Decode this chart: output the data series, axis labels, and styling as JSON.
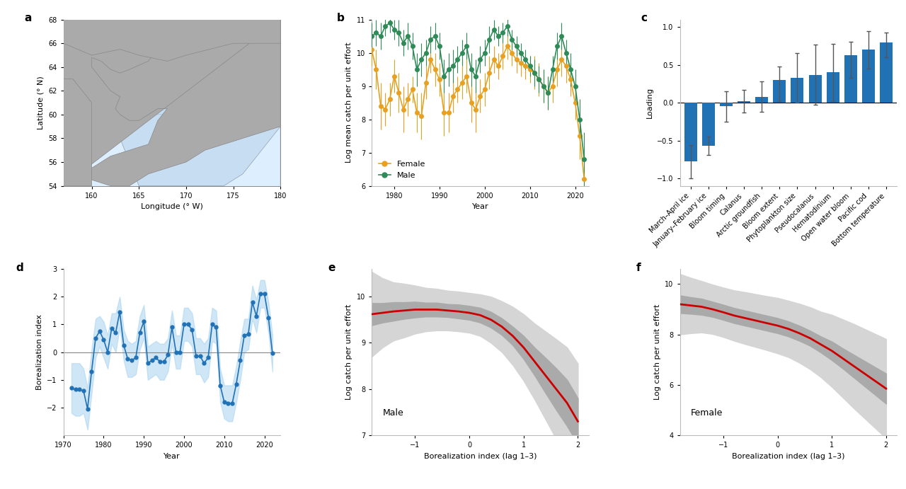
{
  "panel_b": {
    "years_female": [
      1975,
      1976,
      1977,
      1978,
      1979,
      1980,
      1981,
      1982,
      1983,
      1984,
      1985,
      1986,
      1987,
      1988,
      1989,
      1990,
      1991,
      1992,
      1993,
      1994,
      1995,
      1996,
      1997,
      1998,
      1999,
      2000,
      2001,
      2002,
      2003,
      2004,
      2005,
      2006,
      2007,
      2008,
      2009,
      2010,
      2011,
      2012,
      2013,
      2014,
      2015,
      2016,
      2017,
      2018,
      2019,
      2020,
      2021,
      2022
    ],
    "female": [
      10.1,
      9.5,
      8.4,
      8.3,
      8.6,
      9.3,
      8.8,
      8.3,
      8.6,
      8.9,
      8.2,
      8.1,
      9.1,
      9.8,
      9.5,
      9.2,
      8.2,
      8.2,
      8.7,
      8.9,
      9.1,
      9.3,
      8.5,
      8.3,
      8.7,
      8.9,
      9.4,
      9.8,
      9.6,
      9.9,
      10.2,
      10.0,
      9.8,
      9.7,
      9.6,
      9.5,
      9.4,
      9.2,
      9.0,
      8.8,
      9.0,
      9.5,
      9.8,
      9.6,
      9.2,
      8.5,
      7.5,
      6.2
    ],
    "female_err": [
      0.5,
      0.6,
      0.7,
      0.5,
      0.5,
      0.5,
      0.6,
      0.7,
      0.5,
      0.4,
      0.6,
      0.7,
      0.5,
      0.4,
      0.5,
      0.5,
      0.7,
      0.6,
      0.5,
      0.4,
      0.5,
      0.5,
      0.6,
      0.7,
      0.5,
      0.5,
      0.5,
      0.4,
      0.4,
      0.4,
      0.4,
      0.4,
      0.4,
      0.4,
      0.4,
      0.4,
      0.5,
      0.5,
      0.5,
      0.5,
      0.5,
      0.5,
      0.5,
      0.5,
      0.5,
      0.5,
      0.7,
      0.8
    ],
    "years_male": [
      1975,
      1976,
      1977,
      1978,
      1979,
      1980,
      1981,
      1982,
      1983,
      1984,
      1985,
      1986,
      1987,
      1988,
      1989,
      1990,
      1991,
      1992,
      1993,
      1994,
      1995,
      1996,
      1997,
      1998,
      1999,
      2000,
      2001,
      2002,
      2003,
      2004,
      2005,
      2006,
      2007,
      2008,
      2009,
      2010,
      2011,
      2012,
      2013,
      2014,
      2015,
      2016,
      2017,
      2018,
      2019,
      2020,
      2021,
      2022
    ],
    "male": [
      10.5,
      10.6,
      10.5,
      10.8,
      10.9,
      10.7,
      10.6,
      10.3,
      10.5,
      10.2,
      9.5,
      9.8,
      10.0,
      10.4,
      10.5,
      10.2,
      9.3,
      9.5,
      9.6,
      9.8,
      10.0,
      10.2,
      9.5,
      9.3,
      9.8,
      10.0,
      10.4,
      10.7,
      10.5,
      10.6,
      10.8,
      10.4,
      10.2,
      10.0,
      9.8,
      9.6,
      9.4,
      9.2,
      9.0,
      8.8,
      9.5,
      10.2,
      10.5,
      10.0,
      9.5,
      9.0,
      8.0,
      6.8
    ],
    "male_err": [
      0.4,
      0.4,
      0.4,
      0.3,
      0.3,
      0.3,
      0.4,
      0.4,
      0.4,
      0.4,
      0.5,
      0.5,
      0.4,
      0.4,
      0.4,
      0.4,
      0.5,
      0.5,
      0.5,
      0.4,
      0.4,
      0.4,
      0.5,
      0.5,
      0.4,
      0.4,
      0.4,
      0.3,
      0.3,
      0.3,
      0.3,
      0.3,
      0.3,
      0.3,
      0.3,
      0.3,
      0.4,
      0.4,
      0.5,
      0.5,
      0.4,
      0.4,
      0.4,
      0.4,
      0.5,
      0.5,
      0.6,
      0.8
    ],
    "female_color": "#E8A020",
    "male_color": "#2E8B57",
    "ylim": [
      6,
      11
    ],
    "yticks": [
      6,
      7,
      8,
      9,
      10,
      11
    ],
    "ylabel": "Log mean catch per unit effort",
    "xlabel": "Year",
    "xlim": [
      1975,
      2023
    ],
    "xticks": [
      1980,
      1990,
      2000,
      2010,
      2020
    ]
  },
  "panel_c": {
    "categories": [
      "March–April ice",
      "January–February ice",
      "Bloom timing",
      "Calanus",
      "Arctic groundfish",
      "Bloom extent",
      "Phytoplankton size",
      "Pseudocalanus",
      "Hematodinium",
      "Open water bloom",
      "Pacific cod",
      "Bottom temperature"
    ],
    "values": [
      -0.78,
      -0.57,
      -0.05,
      0.02,
      0.08,
      0.3,
      0.33,
      0.37,
      0.4,
      0.63,
      0.7,
      0.8
    ],
    "errors_lower": [
      0.22,
      0.12,
      0.2,
      0.15,
      0.2,
      0.28,
      0.33,
      0.4,
      0.38,
      0.3,
      0.25,
      0.2
    ],
    "errors_upper": [
      0.22,
      0.12,
      0.2,
      0.15,
      0.2,
      0.18,
      0.33,
      0.4,
      0.38,
      0.18,
      0.25,
      0.13
    ],
    "bar_color": "#2171B5",
    "ylabel": "Loading",
    "ylim": [
      -1.1,
      1.1
    ],
    "yticks": [
      -1.0,
      -0.5,
      0.0,
      0.5,
      1.0
    ]
  },
  "panel_d": {
    "years": [
      1972,
      1973,
      1974,
      1975,
      1976,
      1977,
      1978,
      1979,
      1980,
      1981,
      1982,
      1983,
      1984,
      1985,
      1986,
      1987,
      1988,
      1989,
      1990,
      1991,
      1992,
      1993,
      1994,
      1995,
      1996,
      1997,
      1998,
      1999,
      2000,
      2001,
      2002,
      2003,
      2004,
      2005,
      2006,
      2007,
      2008,
      2009,
      2010,
      2011,
      2012,
      2013,
      2014,
      2015,
      2016,
      2017,
      2018,
      2019,
      2020,
      2021,
      2022
    ],
    "values": [
      -1.3,
      -1.35,
      -1.35,
      -1.4,
      -2.05,
      -0.7,
      0.5,
      0.75,
      0.45,
      0.0,
      0.85,
      0.7,
      1.45,
      0.25,
      -0.25,
      -0.3,
      -0.2,
      0.7,
      1.1,
      -0.4,
      -0.3,
      -0.2,
      -0.35,
      -0.35,
      -0.1,
      0.9,
      0.0,
      0.0,
      1.0,
      1.0,
      0.8,
      -0.15,
      -0.15,
      -0.4,
      -0.2,
      1.0,
      0.9,
      -1.2,
      -1.8,
      -1.85,
      -1.85,
      -1.15,
      -0.3,
      0.6,
      0.65,
      1.8,
      1.3,
      2.1,
      2.1,
      1.25,
      -0.05
    ],
    "ci_lower": [
      -2.2,
      -2.3,
      -2.3,
      -2.2,
      -2.8,
      -1.5,
      -0.2,
      0.2,
      -0.2,
      -0.6,
      0.3,
      0.0,
      0.9,
      -0.3,
      -0.9,
      -0.9,
      -0.8,
      0.1,
      0.5,
      -1.0,
      -0.9,
      -0.8,
      -1.0,
      -1.0,
      -0.7,
      0.3,
      -0.6,
      -0.6,
      0.4,
      0.4,
      0.2,
      -0.8,
      -0.8,
      -1.1,
      -0.9,
      0.4,
      0.3,
      -1.8,
      -2.4,
      -2.5,
      -2.5,
      -1.8,
      -1.0,
      0.0,
      0.1,
      1.2,
      0.7,
      1.6,
      1.6,
      0.7,
      -0.7
    ],
    "ci_upper": [
      -0.4,
      -0.4,
      -0.4,
      -0.6,
      -1.3,
      0.1,
      1.2,
      1.3,
      1.1,
      0.6,
      1.4,
      1.4,
      2.0,
      0.8,
      0.4,
      0.3,
      0.4,
      1.3,
      1.7,
      0.2,
      0.3,
      0.4,
      0.3,
      0.3,
      0.5,
      1.5,
      0.6,
      0.6,
      1.6,
      1.6,
      1.4,
      0.5,
      0.5,
      0.3,
      0.5,
      1.6,
      1.5,
      -0.6,
      -1.2,
      -1.2,
      -1.2,
      -0.5,
      0.4,
      1.2,
      1.2,
      2.4,
      1.9,
      2.6,
      2.6,
      1.8,
      0.6
    ],
    "line_color": "#2171B5",
    "ci_color": "#AED6F1",
    "ylim": [
      -3,
      3
    ],
    "yticks": [
      -2,
      -1,
      0,
      1,
      2,
      3
    ],
    "ylabel": "Borealization index",
    "xlabel": "Year",
    "xlim": [
      1970,
      2024
    ],
    "xticks": [
      1970,
      1980,
      1990,
      2000,
      2010,
      2020
    ]
  },
  "panel_e": {
    "x": [
      -1.8,
      -1.6,
      -1.4,
      -1.2,
      -1.0,
      -0.8,
      -0.6,
      -0.4,
      -0.2,
      0.0,
      0.2,
      0.4,
      0.6,
      0.8,
      1.0,
      1.2,
      1.4,
      1.6,
      1.8,
      2.0
    ],
    "y_mean": [
      9.62,
      9.65,
      9.68,
      9.7,
      9.72,
      9.72,
      9.72,
      9.7,
      9.68,
      9.65,
      9.6,
      9.5,
      9.35,
      9.15,
      8.9,
      8.6,
      8.3,
      8.0,
      7.7,
      7.3
    ],
    "y_inner_lower": [
      9.38,
      9.44,
      9.48,
      9.52,
      9.55,
      9.57,
      9.57,
      9.56,
      9.53,
      9.5,
      9.44,
      9.33,
      9.17,
      8.95,
      8.65,
      8.3,
      7.92,
      7.55,
      7.2,
      6.8
    ],
    "y_inner_upper": [
      9.86,
      9.86,
      9.88,
      9.88,
      9.89,
      9.87,
      9.87,
      9.84,
      9.83,
      9.8,
      9.76,
      9.67,
      9.53,
      9.35,
      9.15,
      8.9,
      8.68,
      8.45,
      8.2,
      7.8
    ],
    "y_outer_lower": [
      8.7,
      8.9,
      9.05,
      9.12,
      9.2,
      9.25,
      9.27,
      9.27,
      9.25,
      9.22,
      9.15,
      9.0,
      8.8,
      8.52,
      8.18,
      7.78,
      7.35,
      6.92,
      6.5,
      6.05
    ],
    "y_outer_upper": [
      10.54,
      10.4,
      10.31,
      10.28,
      10.24,
      10.19,
      10.17,
      10.13,
      10.11,
      10.08,
      10.05,
      10.0,
      9.9,
      9.78,
      9.62,
      9.42,
      9.25,
      9.08,
      8.9,
      8.55
    ],
    "line_color": "#CC0000",
    "inner_ci_color": "#AAAAAA",
    "outer_ci_color": "#D5D5D5",
    "ylim": [
      7,
      10.6
    ],
    "yticks": [
      7,
      8,
      9,
      10
    ],
    "ylabel": "Log catch per unit effort",
    "xlabel": "Borealization index (lag 1–3)",
    "label": "Male",
    "xlim": [
      -1.8,
      2.2
    ],
    "xticks": [
      -1,
      0,
      1,
      2
    ]
  },
  "panel_f": {
    "x": [
      -1.8,
      -1.6,
      -1.4,
      -1.2,
      -1.0,
      -0.8,
      -0.6,
      -0.4,
      -0.2,
      0.0,
      0.2,
      0.4,
      0.6,
      0.8,
      1.0,
      1.2,
      1.4,
      1.6,
      1.8,
      2.0
    ],
    "y_mean": [
      9.2,
      9.15,
      9.1,
      9.0,
      8.88,
      8.75,
      8.65,
      8.55,
      8.45,
      8.35,
      8.22,
      8.05,
      7.85,
      7.6,
      7.35,
      7.05,
      6.75,
      6.45,
      6.15,
      5.85
    ],
    "y_inner_lower": [
      8.85,
      8.82,
      8.78,
      8.7,
      8.58,
      8.45,
      8.35,
      8.25,
      8.15,
      8.05,
      7.92,
      7.75,
      7.55,
      7.28,
      6.98,
      6.65,
      6.3,
      5.95,
      5.6,
      5.25
    ],
    "y_inner_upper": [
      9.55,
      9.48,
      9.42,
      9.3,
      9.18,
      9.05,
      8.95,
      8.85,
      8.75,
      8.65,
      8.52,
      8.35,
      8.15,
      7.92,
      7.72,
      7.45,
      7.2,
      6.95,
      6.7,
      6.45
    ],
    "y_outer_lower": [
      8.0,
      8.05,
      8.08,
      8.02,
      7.9,
      7.75,
      7.62,
      7.5,
      7.38,
      7.25,
      7.1,
      6.88,
      6.62,
      6.3,
      5.92,
      5.5,
      5.08,
      4.68,
      4.28,
      3.88
    ],
    "y_outer_upper": [
      10.4,
      10.25,
      10.12,
      9.98,
      9.86,
      9.75,
      9.68,
      9.6,
      9.52,
      9.45,
      9.34,
      9.22,
      9.08,
      8.9,
      8.78,
      8.6,
      8.42,
      8.22,
      8.02,
      7.82
    ],
    "line_color": "#CC0000",
    "inner_ci_color": "#AAAAAA",
    "outer_ci_color": "#D5D5D5",
    "ylim": [
      4,
      10.6
    ],
    "yticks": [
      4,
      6,
      8,
      10
    ],
    "ylabel": "Log catch per unit effort",
    "xlabel": "Borealization index (lag 1–3)",
    "label": "Female",
    "xlim": [
      -1.8,
      2.2
    ],
    "xticks": [
      -1,
      0,
      1,
      2
    ]
  },
  "map": {
    "xlim": [
      157,
      180
    ],
    "ylim": [
      54,
      68
    ],
    "xlabel": "Longitude (° W)",
    "ylabel": "Latitude (° N)",
    "xticks": [
      180,
      175,
      170,
      165,
      160
    ],
    "yticks": [
      54,
      56,
      58,
      60,
      62,
      64,
      66,
      68
    ],
    "land_color": "#AAAAAA",
    "ocean_color": "#DDEEFF",
    "survey_color": "#C5DCF0"
  },
  "bg_color": "#FFFFFF",
  "panel_labels": [
    "a",
    "b",
    "c",
    "d",
    "e",
    "f"
  ]
}
